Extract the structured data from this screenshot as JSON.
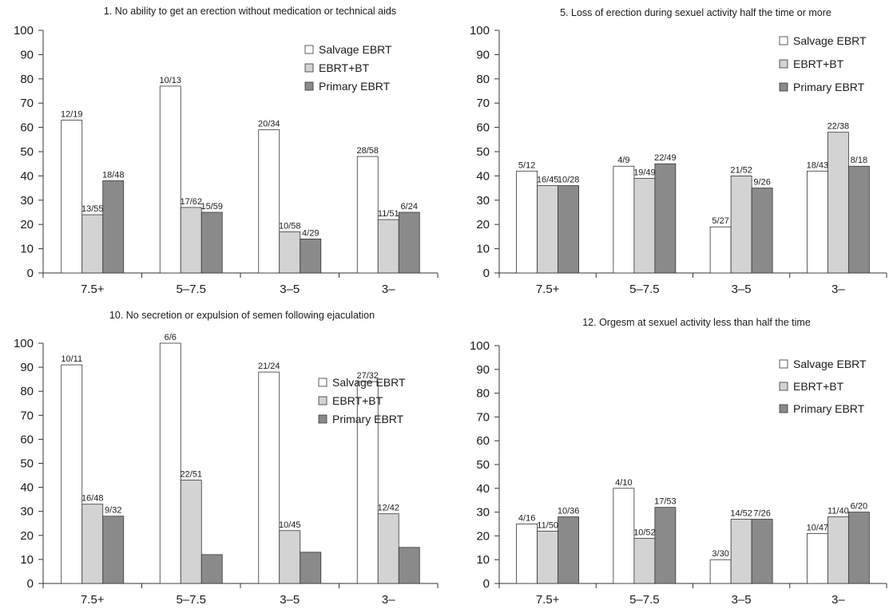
{
  "colors": {
    "Salvage EBRT": "#ffffff",
    "EBRT+BT": "#d3d3d3",
    "Primary EBRT": "#8a8a8a",
    "stroke": "#333333"
  },
  "chart_data": [
    {
      "type": "bar",
      "title": "1. No ability to get an erection without medication or technical aids",
      "categories": [
        "7.5+",
        "5–7.5",
        "3–5",
        "3–"
      ],
      "ylim": [
        0,
        100
      ],
      "yticks": [
        0,
        10,
        20,
        30,
        40,
        50,
        60,
        70,
        80,
        90,
        100
      ],
      "legend": "top-right",
      "grid": false,
      "series": [
        {
          "name": "Salvage EBRT",
          "values": [
            63,
            77,
            59,
            48
          ],
          "labels": [
            "12/19",
            "10/13",
            "20/34",
            "28/58"
          ]
        },
        {
          "name": "EBRT+BT",
          "values": [
            24,
            27,
            17,
            22
          ],
          "labels": [
            "13/55",
            "17/62",
            "10/58",
            "11/51"
          ]
        },
        {
          "name": "Primary EBRT",
          "values": [
            38,
            25,
            14,
            25
          ],
          "labels": [
            "18/48",
            "15/59",
            "4/29",
            "6/24"
          ]
        }
      ]
    },
    {
      "type": "bar",
      "title": "5. Loss of erection during sexuel activity half the time or more",
      "categories": [
        "7.5+",
        "5–7.5",
        "3–5",
        "3–"
      ],
      "ylim": [
        0,
        100
      ],
      "yticks": [
        0,
        10,
        20,
        30,
        40,
        50,
        60,
        70,
        80,
        90,
        100
      ],
      "legend": "top-right",
      "grid": false,
      "series": [
        {
          "name": "Salvage EBRT",
          "values": [
            42,
            44,
            19,
            42
          ],
          "labels": [
            "5/12",
            "4/9",
            "5/27",
            "18/43"
          ]
        },
        {
          "name": "EBRT+BT",
          "values": [
            36,
            39,
            40,
            58
          ],
          "labels": [
            "16/45",
            "19/49",
            "21/52",
            "22/38"
          ]
        },
        {
          "name": "Primary EBRT",
          "values": [
            36,
            45,
            35,
            44
          ],
          "labels": [
            "10/28",
            "22/49",
            "9/26",
            "8/18"
          ]
        }
      ]
    },
    {
      "type": "bar",
      "title": "10. No secretion or expulsion of semen following ejaculation",
      "categories": [
        "7.5+",
        "5–7.5",
        "3–5",
        "3–"
      ],
      "ylim": [
        0,
        100
      ],
      "yticks": [
        0,
        10,
        20,
        30,
        40,
        50,
        60,
        70,
        80,
        90,
        100
      ],
      "legend": "top-right",
      "grid": false,
      "series": [
        {
          "name": "Salvage EBRT",
          "values": [
            91,
            100,
            88,
            84
          ],
          "labels": [
            "10/11",
            "6/6",
            "21/24",
            "27/32"
          ]
        },
        {
          "name": "EBRT+BT",
          "values": [
            33,
            43,
            22,
            29
          ],
          "labels": [
            "16/48",
            "22/51",
            "10/45",
            "12/42"
          ]
        },
        {
          "name": "Primary EBRT",
          "values": [
            28,
            12,
            13,
            15
          ],
          "labels": [
            "9/32",
            "",
            "",
            ""
          ]
        }
      ]
    },
    {
      "type": "bar",
      "title": "12. Orgesm at sexuel activity less than half the time",
      "categories": [
        "7.5+",
        "5–7.5",
        "3–5",
        "3–"
      ],
      "ylim": [
        0,
        100
      ],
      "yticks": [
        0,
        10,
        20,
        30,
        40,
        50,
        60,
        70,
        80,
        90,
        100
      ],
      "legend": "top-right",
      "grid": false,
      "series": [
        {
          "name": "Salvage EBRT",
          "values": [
            25,
            40,
            10,
            21
          ],
          "labels": [
            "4/16",
            "4/10",
            "3/30",
            "10/47"
          ]
        },
        {
          "name": "EBRT+BT",
          "values": [
            22,
            19,
            27,
            28
          ],
          "labels": [
            "11/50",
            "10/52",
            "14/52",
            "11/40"
          ]
        },
        {
          "name": "Primary EBRT",
          "values": [
            28,
            32,
            27,
            30
          ],
          "labels": [
            "10/36",
            "17/53",
            "7/26",
            "6/20"
          ]
        }
      ]
    }
  ]
}
